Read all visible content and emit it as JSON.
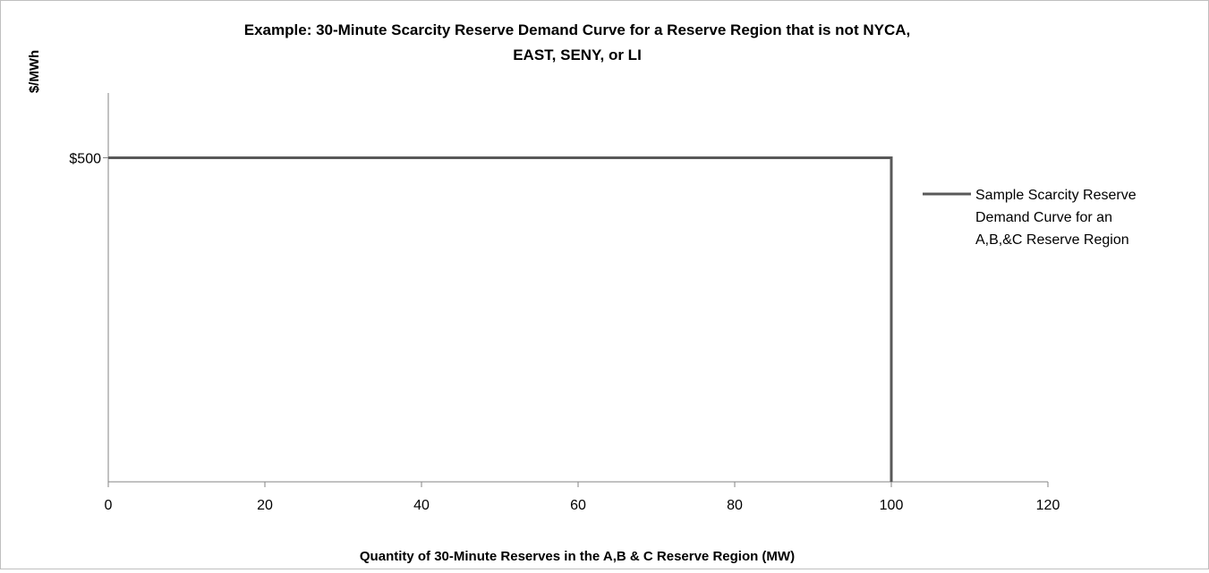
{
  "chart_data": {
    "type": "line",
    "title_lines": [
      "Example: 30-Minute Scarcity Reserve Demand Curve for a Reserve Region that is not NYCA,",
      "EAST, SENY, or LI"
    ],
    "xlabel": "Quantity of 30-Minute Reserves in the A,B & C Reserve Region (MW)",
    "ylabel": "$/MWh",
    "xlim": [
      0,
      120
    ],
    "ylim": [
      0,
      600
    ],
    "x_ticks": [
      0,
      20,
      40,
      60,
      80,
      100,
      120
    ],
    "x_tick_labels": [
      "0",
      "20",
      "40",
      "60",
      "80",
      "100",
      "120"
    ],
    "y_ticks": [
      500
    ],
    "y_tick_labels": [
      "$500"
    ],
    "grid": false,
    "legend_position": "right",
    "series": [
      {
        "name_lines": [
          "Sample Scarcity Reserve",
          "Demand Curve for an",
          "A,B,&C Reserve Region"
        ],
        "color": "#595959",
        "x": [
          0,
          100,
          100
        ],
        "y": [
          500,
          500,
          0
        ]
      }
    ]
  }
}
